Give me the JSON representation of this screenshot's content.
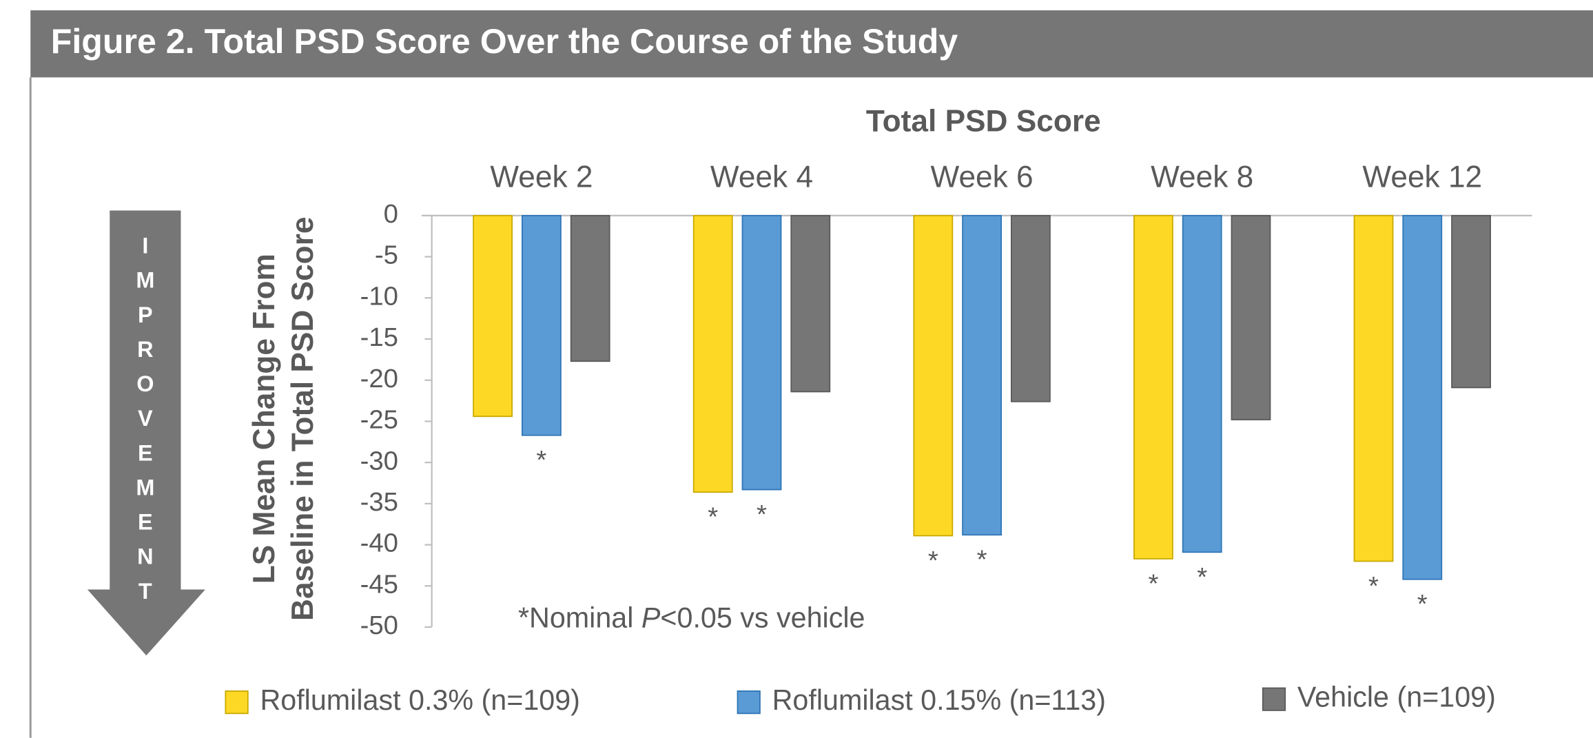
{
  "chart_data": {
    "type": "bar",
    "header": "Figure 2. Total PSD Score Over the Course of the Study",
    "title": "Total PSD Score",
    "ylabel": [
      "LS Mean Change From",
      "Baseline in Total PSD Score"
    ],
    "arrow_label": "IMPROVEMENT",
    "footnote": [
      "*Nominal ",
      "P",
      "<0.05 vs vehicle"
    ],
    "categories": [
      "Week 2",
      "Week 4",
      "Week 6",
      "Week 8",
      "Week 12"
    ],
    "series": [
      {
        "name": "Roflumilast 0.3% (n=109)",
        "color": "#fdd925",
        "values": [
          -24.4,
          -33.6,
          -38.9,
          -41.7,
          -42.0
        ],
        "markers": [
          null,
          "*",
          "*",
          "*",
          "*"
        ]
      },
      {
        "name": "Roflumilast 0.15% (n=113)",
        "color": "#5b9bd5",
        "values": [
          -26.7,
          -33.3,
          -38.8,
          -40.9,
          -44.2
        ],
        "markers": [
          "*",
          "*",
          "*",
          "*",
          "*"
        ]
      },
      {
        "name": "Vehicle (n=109)",
        "color": "#767676",
        "values": [
          -17.7,
          -21.4,
          -22.6,
          -24.8,
          -20.9
        ],
        "markers": [
          null,
          null,
          null,
          null,
          null
        ]
      }
    ],
    "ylim": [
      -50,
      0
    ],
    "yticks": [
      0,
      -5,
      -10,
      -15,
      -20,
      -25,
      -30,
      -35,
      -40,
      -45,
      -50
    ]
  }
}
